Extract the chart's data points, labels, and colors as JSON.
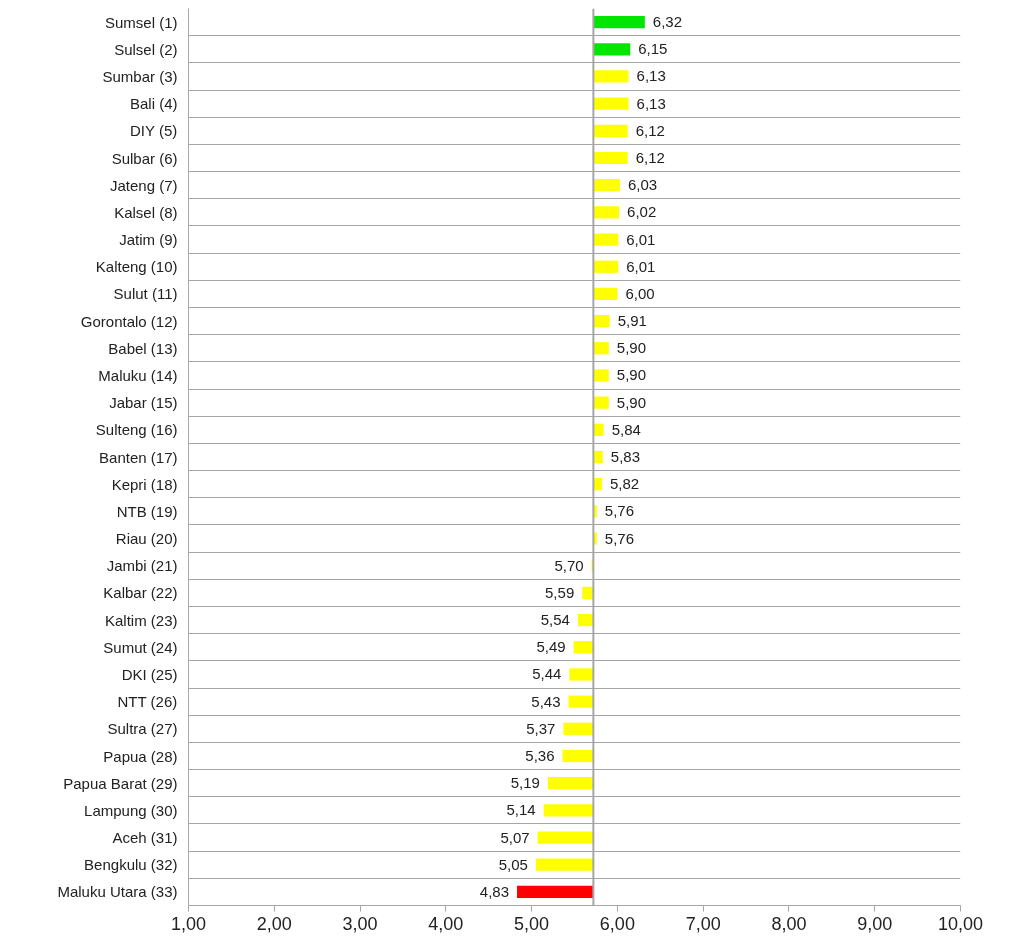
{
  "chart_data": {
    "type": "bar",
    "orientation": "horizontal",
    "categories": [
      "Sumsel (1)",
      "Sulsel (2)",
      "Sumbar (3)",
      "Bali (4)",
      "DIY (5)",
      "Sulbar (6)",
      "Jateng (7)",
      "Kalsel (8)",
      "Jatim (9)",
      "Kalteng (10)",
      "Sulut (11)",
      "Gorontalo (12)",
      "Babel (13)",
      "Maluku (14)",
      "Jabar (15)",
      "Sulteng (16)",
      "Banten (17)",
      "Kepri (18)",
      "NTB (19)",
      "Riau (20)",
      "Jambi (21)",
      "Kalbar (22)",
      "Kaltim (23)",
      "Sumut (24)",
      "DKI (25)",
      "NTT (26)",
      "Sultra (27)",
      "Papua (28)",
      "Papua Barat (29)",
      "Lampung (30)",
      "Aceh (31)",
      "Bengkulu (32)",
      "Maluku Utara (33)"
    ],
    "base": [
      5.72,
      5.72,
      5.72,
      5.72,
      5.72,
      5.72,
      5.72,
      5.72,
      5.72,
      5.72,
      5.72,
      5.72,
      5.72,
      5.72,
      5.72,
      5.72,
      5.72,
      5.72,
      5.72,
      5.72,
      5.72,
      5.72,
      5.72,
      5.72,
      5.72,
      5.72,
      5.72,
      5.72,
      5.72,
      5.72,
      5.72,
      5.72,
      5.72
    ],
    "values": [
      0.6,
      0.43,
      0.41,
      0.41,
      0.4,
      0.4,
      0.31,
      0.3,
      0.29,
      0.29,
      0.28,
      0.19,
      0.18,
      0.18,
      0.18,
      0.12,
      0.11,
      0.1,
      0.04,
      0.04,
      -0.02,
      -0.13,
      -0.18,
      -0.23,
      -0.28,
      -0.29,
      -0.35,
      -0.36,
      -0.53,
      -0.58,
      -0.65,
      -0.67,
      -0.89
    ],
    "value_labels": [
      "6,32",
      "6,15",
      "6,13",
      "6,13",
      "6,12",
      "6,12",
      "6,03",
      "6,02",
      "6,01",
      "6,01",
      "6,00",
      "5,91",
      "5,90",
      "5,90",
      "5,90",
      "5,84",
      "5,83",
      "5,82",
      "5,76",
      "5,76",
      "5,70",
      "5,59",
      "5,54",
      "5,49",
      "5,44",
      "5,43",
      "5,37",
      "5,36",
      "5,19",
      "5,14",
      "5,07",
      "5,05",
      "4,83"
    ],
    "colors": [
      "#00e600",
      "#00e600",
      "#ffff00",
      "#ffff00",
      "#ffff00",
      "#ffff00",
      "#ffff00",
      "#ffff00",
      "#ffff00",
      "#ffff00",
      "#ffff00",
      "#ffff00",
      "#ffff00",
      "#ffff00",
      "#ffff00",
      "#ffff00",
      "#ffff00",
      "#ffff00",
      "#ffff00",
      "#ffff00",
      "#ffff00",
      "#ffff00",
      "#ffff00",
      "#ffff00",
      "#ffff00",
      "#ffff00",
      "#ffff00",
      "#ffff00",
      "#ffff00",
      "#ffff00",
      "#ffff00",
      "#ffff00",
      "#ff0000"
    ],
    "xlim": [
      1,
      10
    ],
    "xticks": [
      {
        "value": 1,
        "label": "1,00"
      },
      {
        "value": 2,
        "label": "2,00"
      },
      {
        "value": 3,
        "label": "3,00"
      },
      {
        "value": 4,
        "label": "4,00"
      },
      {
        "value": 5,
        "label": "5,00"
      },
      {
        "value": 6,
        "label": "6,00"
      },
      {
        "value": 7,
        "label": "7,00"
      },
      {
        "value": 8,
        "label": "8,00"
      },
      {
        "value": 9,
        "label": "9,00"
      },
      {
        "value": 10,
        "label": "10,00"
      }
    ],
    "ref_lines": [
      {
        "axis": "x",
        "value": 5.72,
        "color": "#a6a6a6"
      }
    ],
    "grid": "y"
  }
}
